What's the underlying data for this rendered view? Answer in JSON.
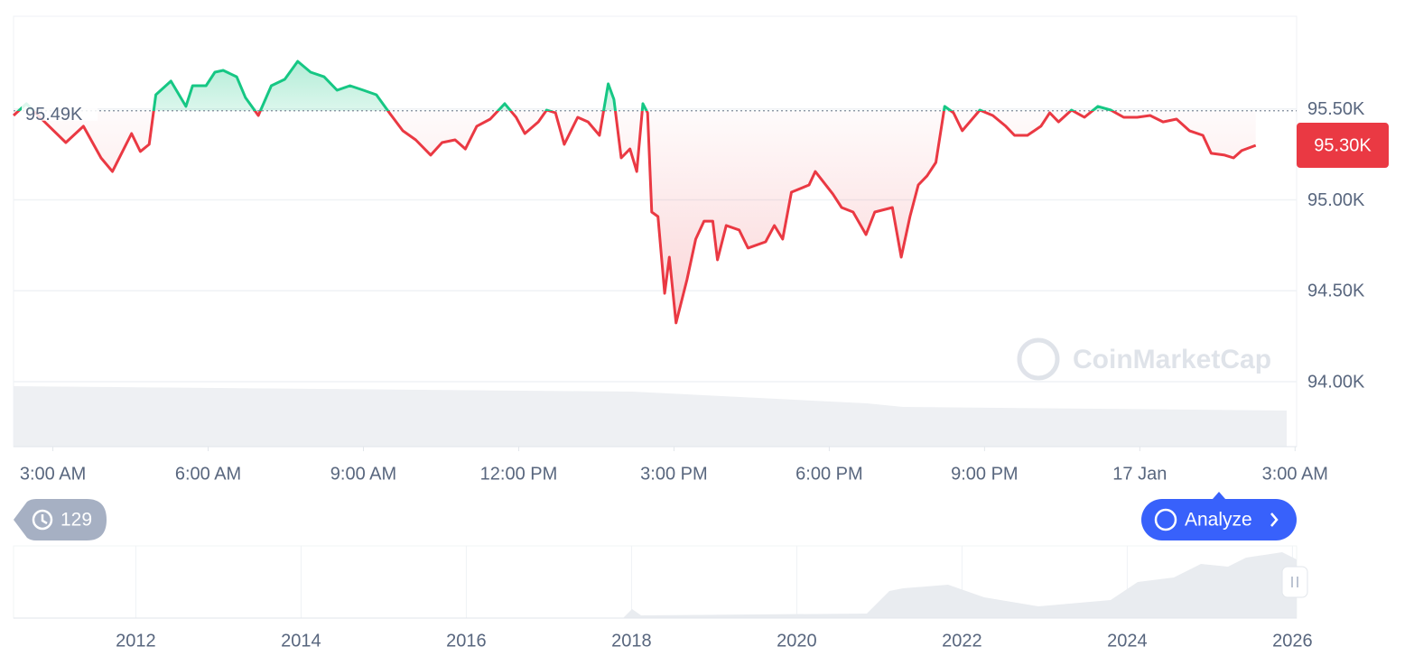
{
  "chart_data": {
    "type": "line",
    "x": [
      2.24,
      2.49,
      2.75,
      3.25,
      3.59,
      3.93,
      4.15,
      4.52,
      4.69,
      4.86,
      4.99,
      5.28,
      5.57,
      5.7,
      5.96,
      6.13,
      6.29,
      6.55,
      6.72,
      6.97,
      7.22,
      7.48,
      7.73,
      7.98,
      8.24,
      8.49,
      8.74,
      9.0,
      9.25,
      9.5,
      9.76,
      10.01,
      10.3,
      10.52,
      10.77,
      10.97,
      11.19,
      11.45,
      11.73,
      11.95,
      12.12,
      12.38,
      12.54,
      12.71,
      12.88,
      13.14,
      13.34,
      13.56,
      13.73,
      13.84,
      13.98,
      14.15,
      14.28,
      14.4,
      14.49,
      14.57,
      14.69,
      14.82,
      14.91,
      15.04,
      15.25,
      15.42,
      15.58,
      15.75,
      15.84,
      16.01,
      16.26,
      16.43,
      16.77,
      16.94,
      17.1,
      17.27,
      17.61,
      17.73,
      18.07,
      18.24,
      18.46,
      18.71,
      18.88,
      19.22,
      19.39,
      19.56,
      19.72,
      19.89,
      20.06,
      20.23,
      20.4,
      20.57,
      20.91,
      21.16,
      21.41,
      21.58,
      21.83,
      22.09,
      22.26,
      22.43,
      22.68,
      22.93,
      23.19,
      23.44,
      23.69,
      23.95,
      24.2,
      24.45,
      24.71,
      24.96,
      25.22,
      25.38,
      25.64,
      25.81,
      25.97,
      26.24
    ],
    "values": [
      95464,
      95529,
      95454,
      95315,
      95405,
      95231,
      95156,
      95365,
      95266,
      95305,
      95578,
      95653,
      95514,
      95628,
      95628,
      95702,
      95712,
      95677,
      95563,
      95464,
      95628,
      95663,
      95762,
      95702,
      95677,
      95603,
      95628,
      95603,
      95578,
      95479,
      95380,
      95330,
      95246,
      95315,
      95330,
      95280,
      95405,
      95444,
      95529,
      95454,
      95365,
      95429,
      95494,
      95479,
      95305,
      95454,
      95429,
      95355,
      95638,
      95553,
      95231,
      95280,
      95156,
      95529,
      95479,
      94933,
      94908,
      94486,
      94685,
      94323,
      94561,
      94784,
      94883,
      94883,
      94670,
      94859,
      94834,
      94735,
      94769,
      94859,
      94784,
      95042,
      95082,
      95156,
      95032,
      94958,
      94933,
      94809,
      94933,
      94958,
      94685,
      94908,
      95082,
      95132,
      95206,
      95514,
      95479,
      95380,
      95494,
      95464,
      95405,
      95355,
      95355,
      95405,
      95479,
      95429,
      95494,
      95454,
      95514,
      95494,
      95454,
      95454,
      95464,
      95429,
      95444,
      95380,
      95355,
      95256,
      95246,
      95231,
      95271,
      95300
    ],
    "color_up": "#16c784",
    "color_down": "#ea3943",
    "baseline": 95490,
    "baseline_label": "95.49K",
    "current_price": 95300,
    "current_price_label": "95.30K",
    "xlim": [
      2.24,
      27.03
    ],
    "xticks": [
      {
        "value": 3,
        "label": "3:00 AM"
      },
      {
        "value": 6,
        "label": "6:00 AM"
      },
      {
        "value": 9,
        "label": "9:00 AM"
      },
      {
        "value": 12,
        "label": "12:00 PM"
      },
      {
        "value": 15,
        "label": "3:00 PM"
      },
      {
        "value": 18,
        "label": "6:00 PM"
      },
      {
        "value": 21,
        "label": "9:00 PM"
      },
      {
        "value": 24,
        "label": "17 Jan"
      },
      {
        "value": 27,
        "label": "3:00 AM"
      }
    ],
    "ylim": [
      94000,
      96000
    ],
    "yticks": [
      {
        "value": 94000,
        "label": "94.00K"
      },
      {
        "value": 94500,
        "label": "94.50K"
      },
      {
        "value": 95000,
        "label": "95.00K"
      },
      {
        "value": 95500,
        "label": "95.50K"
      }
    ],
    "grid": true,
    "watermark": "CoinMarketCap"
  },
  "navigator": {
    "xlim": [
      2010.52,
      2026.05
    ],
    "years": [
      2012,
      2014,
      2016,
      2018,
      2020,
      2022,
      2024,
      2026
    ]
  },
  "controls": {
    "history_count": 129,
    "analyze": "Analyze"
  }
}
